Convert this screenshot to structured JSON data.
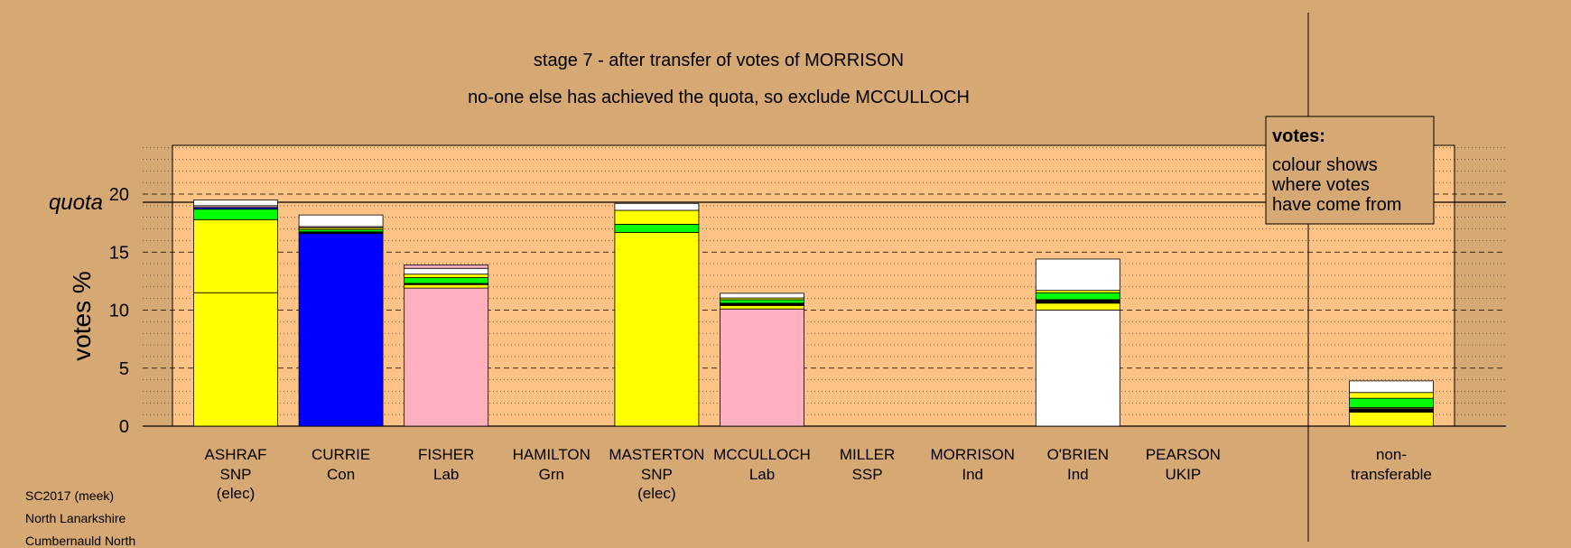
{
  "title": "stage 7 - after transfer of votes of MORRISON",
  "subtitle": "no-one else has achieved the quota, so exclude MCCULLOCH",
  "legend_box": {
    "heading": "votes:",
    "lines": [
      "colour shows",
      "where votes",
      "have come from"
    ]
  },
  "footer": {
    "line1": "SC2017 (meek)",
    "line2": "North Lanarkshire",
    "line3": "Cumbernauld North"
  },
  "colors": {
    "background": "#d5a874",
    "plot_area": "#fdc286",
    "SNP": "#ffff00",
    "Con": "#0000ff",
    "Lab": "#ffb0c0",
    "Grn": "#00ff00",
    "Ind": "#ffffff",
    "SSP": "#ff0000",
    "UKIP": "#7f00ff",
    "other": "#000000"
  },
  "chart_data": {
    "type": "bar",
    "stacked": true,
    "ylabel": "votes %",
    "ylim": [
      0,
      24
    ],
    "yticks": [
      0,
      5,
      10,
      15,
      20
    ],
    "quota": 19.3,
    "quota_label": "quota",
    "grid": true,
    "candidates": [
      {
        "name": "ASHRAF",
        "party": "SNP",
        "status": "(elec)",
        "segments": [
          {
            "party": "SNP",
            "value": 11.5
          },
          {
            "party": "SNP",
            "value": 6.3
          },
          {
            "party": "Grn",
            "value": 0.9
          },
          {
            "party": "Con",
            "value": 0.15
          },
          {
            "party": "Lab",
            "value": 0.15
          },
          {
            "party": "Ind",
            "value": 0.5
          }
        ]
      },
      {
        "name": "CURRIE",
        "party": "Con",
        "status": "",
        "segments": [
          {
            "party": "Con",
            "value": 16.6
          },
          {
            "party": "other",
            "value": 0.15
          },
          {
            "party": "Grn",
            "value": 0.2
          },
          {
            "party": "SNP",
            "value": 0.15
          },
          {
            "party": "Lab",
            "value": 0.1
          },
          {
            "party": "Ind",
            "value": 1.0
          }
        ]
      },
      {
        "name": "FISHER",
        "party": "Lab",
        "status": "",
        "segments": [
          {
            "party": "Lab",
            "value": 11.9
          },
          {
            "party": "SNP",
            "value": 0.3
          },
          {
            "party": "other",
            "value": 0.1
          },
          {
            "party": "Grn",
            "value": 0.5
          },
          {
            "party": "SNP",
            "value": 0.3
          },
          {
            "party": "Ind",
            "value": 0.5
          },
          {
            "party": "Lab",
            "value": 0.3
          }
        ]
      },
      {
        "name": "HAMILTON",
        "party": "Grn",
        "status": "",
        "segments": []
      },
      {
        "name": "MASTERTON",
        "party": "SNP",
        "status": "(elec)",
        "segments": [
          {
            "party": "SNP",
            "value": 16.7
          },
          {
            "party": "Grn",
            "value": 0.7
          },
          {
            "party": "SNP",
            "value": 1.2
          },
          {
            "party": "Ind",
            "value": 0.6
          }
        ]
      },
      {
        "name": "MCCULLOCH",
        "party": "Lab",
        "status": "",
        "segments": [
          {
            "party": "Lab",
            "value": 10.1
          },
          {
            "party": "SNP",
            "value": 0.3
          },
          {
            "party": "other",
            "value": 0.2
          },
          {
            "party": "Grn",
            "value": 0.3
          },
          {
            "party": "SNP",
            "value": 0.15
          },
          {
            "party": "Ind",
            "value": 0.4
          }
        ]
      },
      {
        "name": "MILLER",
        "party": "SSP",
        "status": "",
        "segments": []
      },
      {
        "name": "MORRISON",
        "party": "Ind",
        "status": "",
        "segments": []
      },
      {
        "name": "O'BRIEN",
        "party": "Ind",
        "status": "",
        "segments": [
          {
            "party": "Ind",
            "value": 10.0
          },
          {
            "party": "SNP",
            "value": 0.6
          },
          {
            "party": "other",
            "value": 0.3
          },
          {
            "party": "Grn",
            "value": 0.6
          },
          {
            "party": "SNP",
            "value": 0.2
          },
          {
            "party": "Ind",
            "value": 2.7
          }
        ]
      },
      {
        "name": "PEARSON",
        "party": "UKIP",
        "status": "",
        "segments": []
      }
    ],
    "nontransferable": {
      "label_line1": "non-",
      "label_line2": "transferable",
      "segments": [
        {
          "party": "SNP",
          "value": 1.2
        },
        {
          "party": "other",
          "value": 0.3
        },
        {
          "party": "SNP",
          "value": 0.1
        },
        {
          "party": "Grn",
          "value": 0.8
        },
        {
          "party": "SNP",
          "value": 0.5
        },
        {
          "party": "Ind",
          "value": 1.0
        }
      ]
    }
  }
}
